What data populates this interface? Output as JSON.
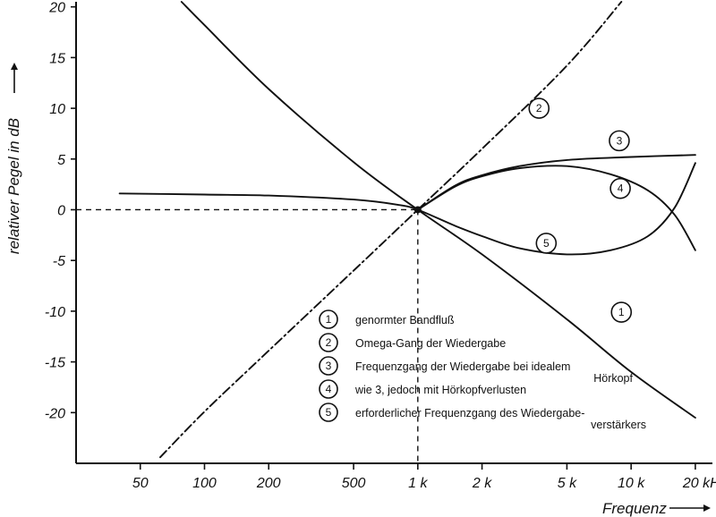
{
  "chart_data": {
    "type": "line",
    "xscale": "log",
    "xlim": [
      25,
      25000
    ],
    "ylim": [
      -25,
      20.5
    ],
    "xlabel": "Frequenz",
    "ylabel": "relativer Pegel in dB",
    "x_ticks": [
      {
        "value": 50,
        "label": "50"
      },
      {
        "value": 100,
        "label": "100"
      },
      {
        "value": 200,
        "label": "200"
      },
      {
        "value": 500,
        "label": "500"
      },
      {
        "value": 1000,
        "label": "1 k"
      },
      {
        "value": 2000,
        "label": "2 k"
      },
      {
        "value": 5000,
        "label": "5 k"
      },
      {
        "value": 10000,
        "label": "10 k"
      },
      {
        "value": 20000,
        "label": "20 kHz"
      }
    ],
    "y_ticks": [
      20,
      15,
      10,
      5,
      0,
      -5,
      -10,
      -15,
      -20
    ],
    "reference_lines": [
      {
        "orientation": "horizontal",
        "y": 0,
        "style": "dashed"
      },
      {
        "orientation": "vertical",
        "x": 1000,
        "style": "dashed"
      }
    ],
    "series": [
      {
        "id": "1",
        "style": "solid",
        "points": [
          [
            78,
            20.5
          ],
          [
            100,
            18.2
          ],
          [
            200,
            11.9
          ],
          [
            500,
            4.7
          ],
          [
            1000,
            0
          ],
          [
            2000,
            -4.4
          ],
          [
            5000,
            -10.8
          ],
          [
            10000,
            -16.0
          ],
          [
            20000,
            -20.5
          ]
        ]
      },
      {
        "id": "2",
        "style": "dashdot",
        "points": [
          [
            62,
            -24.4
          ],
          [
            100,
            -19.9
          ],
          [
            200,
            -13.9
          ],
          [
            500,
            -6.0
          ],
          [
            1000,
            0
          ],
          [
            2000,
            6.0
          ],
          [
            5000,
            14.2
          ],
          [
            9000,
            20.5
          ]
        ]
      },
      {
        "id": "3",
        "style": "solid",
        "points": [
          [
            1000,
            0
          ],
          [
            1500,
            2.4
          ],
          [
            2000,
            3.4
          ],
          [
            3000,
            4.3
          ],
          [
            5000,
            4.9
          ],
          [
            10000,
            5.2
          ],
          [
            20000,
            5.4
          ]
        ]
      },
      {
        "id": "4",
        "style": "solid",
        "points": [
          [
            1000,
            0
          ],
          [
            1500,
            2.3
          ],
          [
            2000,
            3.3
          ],
          [
            3000,
            4.1
          ],
          [
            5000,
            4.3
          ],
          [
            8000,
            3.5
          ],
          [
            12000,
            1.9
          ],
          [
            16000,
            -0.5
          ],
          [
            20000,
            -4.0
          ]
        ]
      },
      {
        "id": "5",
        "style": "solid",
        "points": [
          [
            40,
            1.6
          ],
          [
            100,
            1.5
          ],
          [
            200,
            1.4
          ],
          [
            500,
            1.0
          ],
          [
            800,
            0.5
          ],
          [
            1000,
            0
          ],
          [
            1500,
            -1.6
          ],
          [
            2000,
            -2.6
          ],
          [
            3000,
            -3.8
          ],
          [
            5000,
            -4.4
          ],
          [
            8000,
            -4.0
          ],
          [
            12000,
            -2.6
          ],
          [
            16000,
            0.2
          ],
          [
            20000,
            4.6
          ]
        ]
      }
    ],
    "curve_markers": [
      {
        "label": "1",
        "x": 9000,
        "y": -10.1
      },
      {
        "label": "2",
        "x": 3700,
        "y": 10.0
      },
      {
        "label": "3",
        "x": 8800,
        "y": 6.8
      },
      {
        "label": "4",
        "x": 8900,
        "y": 2.1
      },
      {
        "label": "5",
        "x": 4000,
        "y": -3.3
      }
    ],
    "legend": [
      {
        "number": "1",
        "text": "genormter Bandfluß"
      },
      {
        "number": "2",
        "text": "Omega-Gang der Wiedergabe"
      },
      {
        "number": "3",
        "text": "Frequenzgang der Wiedergabe bei idealem",
        "text2": "Hörkopf"
      },
      {
        "number": "4",
        "text": "wie 3, jedoch mit Hörkopfverlusten"
      },
      {
        "number": "5",
        "text": "erforderlicher Frequenzgang des Wiedergabe-",
        "text2": "verstärkers"
      }
    ],
    "grid": false,
    "legend_position": "bottom-center"
  }
}
